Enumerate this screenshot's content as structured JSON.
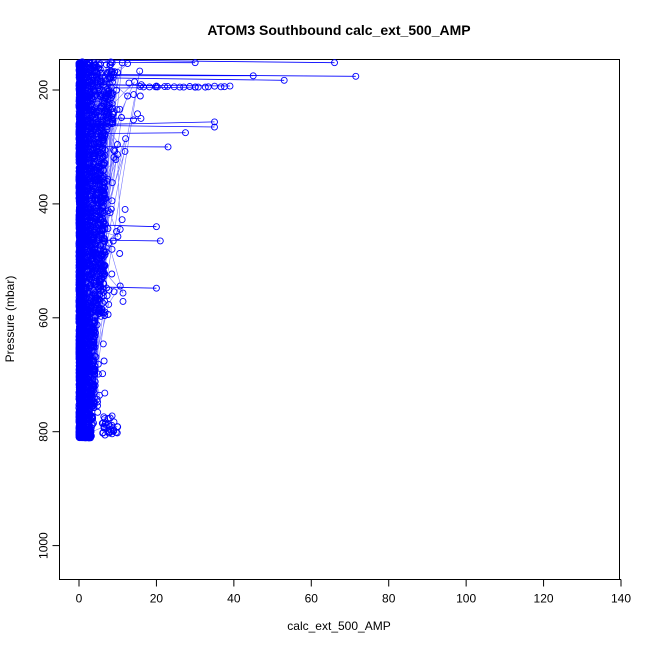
{
  "chart_data": {
    "type": "scatter",
    "title": "ATOM3 Southbound calc_ext_500_AMP",
    "xlabel": "calc_ext_500_AMP",
    "ylabel": "Pressure (mbar)",
    "xlim": [
      0,
      140
    ],
    "ylim": [
      1050,
      150
    ],
    "y_reversed": true,
    "x_ticks": [
      0,
      20,
      40,
      60,
      80,
      100,
      120,
      140
    ],
    "y_ticks": [
      200,
      400,
      600,
      800,
      1000
    ],
    "grid": false,
    "series_color": "#0000ff",
    "marker": "open-circle",
    "connected": true,
    "highlight_points": [
      {
        "x": 71.5,
        "y": 176
      },
      {
        "x": 66,
        "y": 152
      },
      {
        "x": 53,
        "y": 183
      },
      {
        "x": 45,
        "y": 175
      },
      {
        "x": 39,
        "y": 193
      },
      {
        "x": 35,
        "y": 256
      },
      {
        "x": 35,
        "y": 265
      },
      {
        "x": 30,
        "y": 195
      },
      {
        "x": 30,
        "y": 152
      },
      {
        "x": 27.5,
        "y": 275
      },
      {
        "x": 23,
        "y": 300
      },
      {
        "x": 21,
        "y": 465
      },
      {
        "x": 20,
        "y": 440
      },
      {
        "x": 20,
        "y": 193
      },
      {
        "x": 20,
        "y": 548
      },
      {
        "x": 16,
        "y": 250
      }
    ]
  }
}
